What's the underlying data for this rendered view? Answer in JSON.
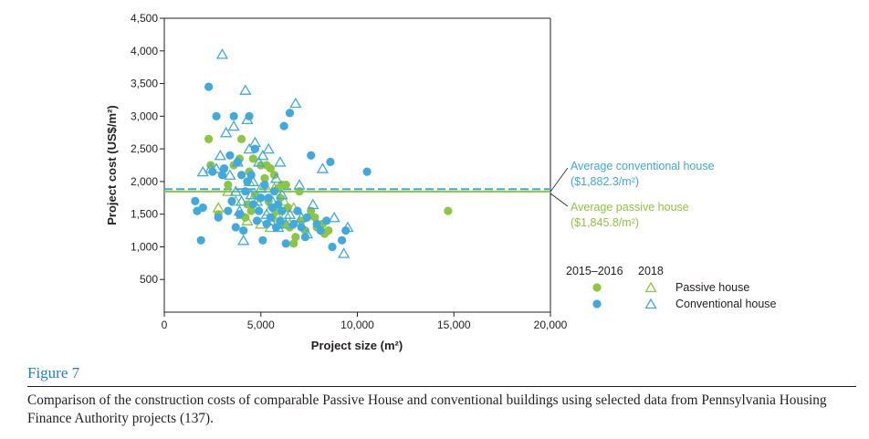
{
  "colors": {
    "passive": "#8dc63f",
    "conventional": "#3fa9e0",
    "axis": "#231f20",
    "figure_label": "#1e7fc2"
  },
  "figure": {
    "label": "Figure 7",
    "caption": "Comparison of the construction costs of comparable Passive House and conventional buildings using selected data from Pennsylvania Housing Finance Authority projects (137)."
  },
  "chart_data": {
    "type": "scatter",
    "xlabel": "Project size (m²)",
    "ylabel": "Project cost  (US$/m²)",
    "xlim": [
      0,
      20000
    ],
    "ylim": [
      0,
      4500
    ],
    "x_ticks": [
      0,
      5000,
      10000,
      15000,
      20000
    ],
    "x_tick_labels": [
      "0",
      "5,000",
      "10,000",
      "15,000",
      "20,000"
    ],
    "y_ticks": [
      500,
      1000,
      1500,
      2000,
      2500,
      3000,
      3500,
      4000,
      4500
    ],
    "y_tick_labels": [
      "500",
      "1,000",
      "1,500",
      "2,000",
      "2,500",
      "3,000",
      "3,500",
      "4,000",
      "4,500"
    ],
    "grid": false,
    "legend": {
      "position": "bottom-right",
      "year_headers": [
        "2015–2016",
        "2018"
      ],
      "entries": [
        {
          "label": "Passive house"
        },
        {
          "label": "Conventional house"
        }
      ]
    },
    "reference_lines": [
      {
        "label": "Average conventional house",
        "value_label": "($1,882.3/m²)",
        "y": 1882.3,
        "style": "dashed",
        "color": "#3fa9e0"
      },
      {
        "label": "Average passive house",
        "value_label": "($1,845.8/m²)",
        "y": 1845.8,
        "style": "solid",
        "color": "#8dc63f"
      }
    ],
    "series": [
      {
        "group": "Passive house",
        "period": "2015–2016",
        "marker": "circle",
        "color": "#8dc63f",
        "points": [
          [
            2300,
            2650
          ],
          [
            2400,
            2250
          ],
          [
            2800,
            1500
          ],
          [
            3300,
            1950
          ],
          [
            3600,
            2250
          ],
          [
            3900,
            2350
          ],
          [
            4000,
            2650
          ],
          [
            4200,
            1450
          ],
          [
            4300,
            1650
          ],
          [
            4400,
            2150
          ],
          [
            4500,
            1550
          ],
          [
            4600,
            2350
          ],
          [
            4700,
            1800
          ],
          [
            5000,
            2250
          ],
          [
            5200,
            2050
          ],
          [
            5300,
            2250
          ],
          [
            5400,
            1700
          ],
          [
            5500,
            2200
          ],
          [
            5600,
            1450
          ],
          [
            5700,
            2100
          ],
          [
            5800,
            1550
          ],
          [
            5900,
            1900
          ],
          [
            6000,
            1750
          ],
          [
            6100,
            1950
          ],
          [
            6200,
            1350
          ],
          [
            6300,
            1950
          ],
          [
            6400,
            1600
          ],
          [
            6500,
            1300
          ],
          [
            6700,
            1050
          ],
          [
            6800,
            1150
          ],
          [
            7000,
            1850
          ],
          [
            7100,
            1400
          ],
          [
            7300,
            1250
          ],
          [
            7600,
            1550
          ],
          [
            7800,
            1450
          ],
          [
            7900,
            1300
          ],
          [
            8200,
            1350
          ],
          [
            8300,
            1200
          ],
          [
            8500,
            1250
          ],
          [
            14700,
            1550
          ]
        ]
      },
      {
        "group": "Passive house",
        "period": "2018",
        "marker": "triangle",
        "color": "#8dc63f",
        "points": [
          [
            2800,
            1600
          ],
          [
            3300,
            1850
          ],
          [
            3700,
            1700
          ],
          [
            4000,
            1500
          ],
          [
            4300,
            1400
          ],
          [
            4400,
            2000
          ],
          [
            4600,
            1750
          ],
          [
            4800,
            1600
          ],
          [
            5000,
            1350
          ],
          [
            5200,
            1950
          ],
          [
            5400,
            1550
          ],
          [
            5500,
            1300
          ],
          [
            5700,
            1900
          ],
          [
            5900,
            1450
          ],
          [
            6200,
            1700
          ],
          [
            6300,
            1500
          ],
          [
            6500,
            1350
          ],
          [
            6700,
            1600
          ]
        ]
      },
      {
        "group": "Conventional house",
        "period": "2015–2016",
        "marker": "circle",
        "color": "#3fa9e0",
        "points": [
          [
            1600,
            1700
          ],
          [
            1700,
            1550
          ],
          [
            1900,
            1100
          ],
          [
            2000,
            1600
          ],
          [
            2300,
            3450
          ],
          [
            2500,
            2150
          ],
          [
            2700,
            3000
          ],
          [
            2800,
            1450
          ],
          [
            3000,
            2100
          ],
          [
            3100,
            2200
          ],
          [
            3300,
            1550
          ],
          [
            3400,
            2400
          ],
          [
            3500,
            1700
          ],
          [
            3600,
            3000
          ],
          [
            3700,
            1300
          ],
          [
            3800,
            2300
          ],
          [
            3900,
            1500
          ],
          [
            4000,
            2100
          ],
          [
            4100,
            1250
          ],
          [
            4200,
            1850
          ],
          [
            4300,
            2000
          ],
          [
            4400,
            3000
          ],
          [
            4500,
            2100
          ],
          [
            4600,
            1650
          ],
          [
            4700,
            2500
          ],
          [
            4800,
            1400
          ],
          [
            4900,
            1550
          ],
          [
            5000,
            1750
          ],
          [
            5100,
            1100
          ],
          [
            5200,
            1950
          ],
          [
            5300,
            1350
          ],
          [
            5400,
            1750
          ],
          [
            5500,
            1450
          ],
          [
            5600,
            1600
          ],
          [
            5700,
            1850
          ],
          [
            5800,
            1300
          ],
          [
            5900,
            1650
          ],
          [
            6000,
            1400
          ],
          [
            6100,
            1550
          ],
          [
            6200,
            2850
          ],
          [
            6300,
            1050
          ],
          [
            6500,
            3050
          ],
          [
            6700,
            1350
          ],
          [
            6900,
            1550
          ],
          [
            7100,
            1300
          ],
          [
            7300,
            1150
          ],
          [
            7400,
            1450
          ],
          [
            7600,
            2400
          ],
          [
            7900,
            1350
          ],
          [
            8100,
            1250
          ],
          [
            8400,
            1400
          ],
          [
            8600,
            2300
          ],
          [
            8700,
            1000
          ],
          [
            9200,
            1100
          ],
          [
            9400,
            1250
          ],
          [
            10500,
            2150
          ]
        ]
      },
      {
        "group": "Conventional house",
        "period": "2018",
        "marker": "triangle",
        "color": "#3fa9e0",
        "points": [
          [
            2000,
            2150
          ],
          [
            2400,
            2200
          ],
          [
            2700,
            2200
          ],
          [
            2900,
            2400
          ],
          [
            3000,
            3950
          ],
          [
            3200,
            2750
          ],
          [
            3400,
            2100
          ],
          [
            3600,
            2850
          ],
          [
            3700,
            1850
          ],
          [
            3800,
            2300
          ],
          [
            3900,
            1550
          ],
          [
            4000,
            1700
          ],
          [
            4100,
            1100
          ],
          [
            4200,
            3400
          ],
          [
            4300,
            2950
          ],
          [
            4400,
            2500
          ],
          [
            4500,
            1800
          ],
          [
            4600,
            2000
          ],
          [
            4700,
            2600
          ],
          [
            4800,
            1700
          ],
          [
            4900,
            2300
          ],
          [
            5000,
            1900
          ],
          [
            5100,
            2400
          ],
          [
            5300,
            1500
          ],
          [
            5400,
            2500
          ],
          [
            5500,
            1400
          ],
          [
            5600,
            1700
          ],
          [
            5800,
            2050
          ],
          [
            5900,
            1300
          ],
          [
            6000,
            2300
          ],
          [
            6100,
            1800
          ],
          [
            6300,
            1350
          ],
          [
            6500,
            1500
          ],
          [
            6800,
            3200
          ],
          [
            7000,
            1950
          ],
          [
            7100,
            1450
          ],
          [
            7400,
            1200
          ],
          [
            7700,
            1650
          ],
          [
            8200,
            2200
          ],
          [
            8800,
            1450
          ],
          [
            9300,
            900
          ],
          [
            9500,
            1300
          ]
        ]
      }
    ]
  }
}
